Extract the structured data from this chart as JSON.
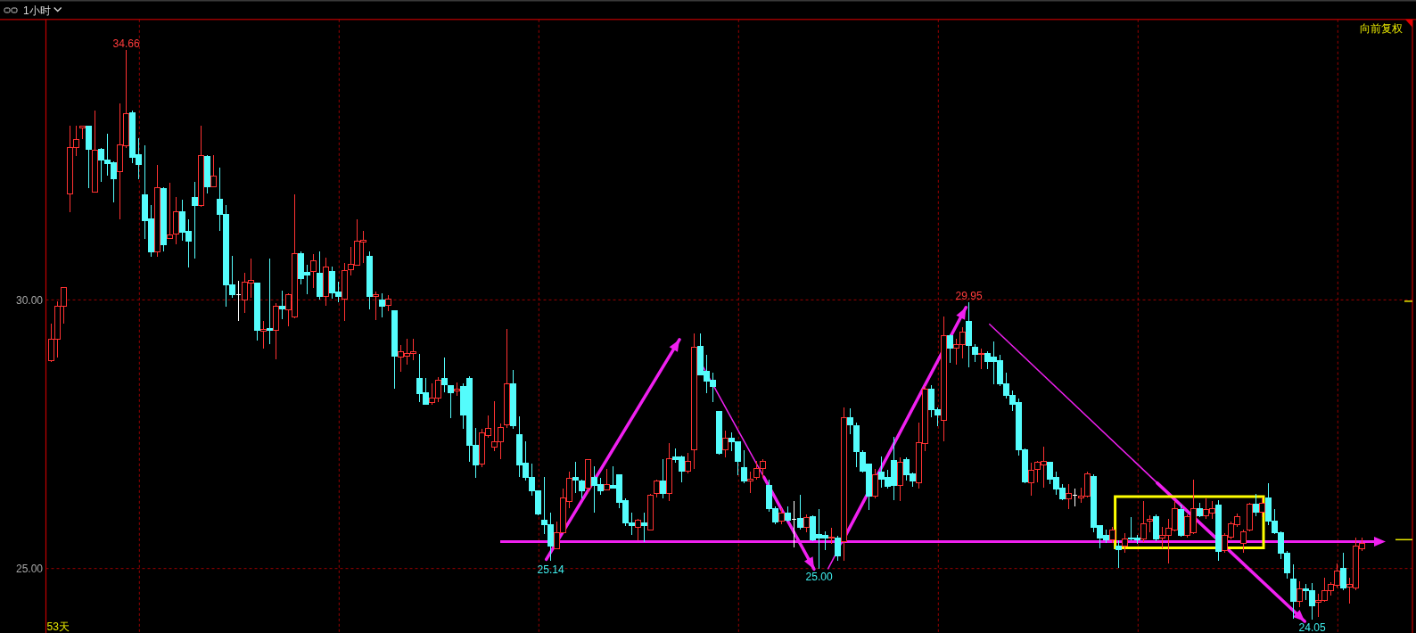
{
  "chart_data": {
    "type": "candlestick",
    "title": "1小时",
    "categories": [
      null,
      null,
      null,
      null,
      null,
      null,
      null,
      null,
      null,
      null,
      null,
      null,
      null,
      null,
      null,
      null,
      null,
      null,
      null,
      null,
      null,
      null,
      null,
      null,
      null,
      null,
      null,
      null,
      null,
      null,
      null,
      null,
      null,
      null,
      null,
      null,
      null,
      null,
      null,
      null,
      null,
      null,
      null,
      null,
      null,
      null,
      null,
      null,
      null,
      null,
      null,
      null,
      null,
      null,
      null,
      null,
      null,
      null,
      null,
      null,
      null,
      null,
      null,
      null,
      null,
      null,
      null,
      null,
      null,
      null,
      null,
      null,
      null,
      null,
      null,
      null,
      null,
      null,
      null,
      null,
      null,
      null,
      null,
      null,
      null,
      null,
      null,
      null,
      null,
      null,
      null,
      null,
      null,
      null,
      null,
      null,
      null,
      null,
      null,
      null,
      null,
      null,
      null,
      null,
      null,
      null,
      null,
      null,
      null,
      null,
      null,
      null,
      null,
      null,
      null,
      null,
      null,
      null,
      null,
      null,
      null,
      null,
      null,
      null,
      null,
      null,
      null,
      null,
      null,
      null,
      null,
      null,
      null,
      null,
      null,
      null,
      null,
      null,
      null,
      null,
      null,
      null,
      null,
      null,
      null,
      null,
      null,
      null,
      null,
      null,
      null,
      null,
      null,
      null,
      null,
      null,
      null,
      null,
      null,
      null,
      null,
      null,
      null,
      null,
      null,
      null,
      null,
      null,
      null,
      null,
      null,
      null,
      null,
      null,
      null,
      null,
      null,
      null,
      null,
      null,
      null,
      null,
      null,
      null,
      null,
      null,
      null,
      null,
      null,
      null,
      null,
      null,
      null,
      null,
      null,
      null,
      null,
      null,
      null,
      null,
      null,
      null,
      null,
      null,
      null,
      null,
      null,
      null,
      null,
      null,
      null
    ],
    "ohlc": [
      [
        28.87,
        29.56,
        28.85,
        29.26
      ],
      [
        29.27,
        29.97,
        28.92,
        29.88
      ],
      [
        29.88,
        30.23,
        29.56,
        30.23
      ],
      [
        31.97,
        33.25,
        31.63,
        32.83
      ],
      [
        32.83,
        33.25,
        32.67,
        32.99
      ],
      [
        33.2,
        33.23,
        32.99,
        33.23
      ],
      [
        33.23,
        33.25,
        32.08,
        32.8
      ],
      [
        32.0,
        33.53,
        32.0,
        32.78
      ],
      [
        32.8,
        32.83,
        32.19,
        32.6
      ],
      [
        32.6,
        33.09,
        32.32,
        32.54
      ],
      [
        32.55,
        32.57,
        31.81,
        32.25
      ],
      [
        32.39,
        33.66,
        31.5,
        32.88
      ],
      [
        32.87,
        34.66,
        32.83,
        33.47
      ],
      [
        33.49,
        33.53,
        32.54,
        32.66
      ],
      [
        32.7,
        33.01,
        32.25,
        32.52
      ],
      [
        31.96,
        32.87,
        31.13,
        31.48
      ],
      [
        31.5,
        31.76,
        30.81,
        30.9
      ],
      [
        30.9,
        32.52,
        30.81,
        32.09
      ],
      [
        32.07,
        32.09,
        30.9,
        31.02
      ],
      [
        31.14,
        32.18,
        31.14,
        31.21
      ],
      [
        31.23,
        31.91,
        31.04,
        31.64
      ],
      [
        31.64,
        31.87,
        31.1,
        31.26
      ],
      [
        31.28,
        31.5,
        30.61,
        31.1
      ],
      [
        31.91,
        32.19,
        30.77,
        31.75
      ],
      [
        31.75,
        33.25,
        31.74,
        32.69
      ],
      [
        32.67,
        32.7,
        31.98,
        32.1
      ],
      [
        32.1,
        32.7,
        32.1,
        32.3
      ],
      [
        31.88,
        32.47,
        31.28,
        31.59
      ],
      [
        31.59,
        31.77,
        29.88,
        30.28
      ],
      [
        30.28,
        30.82,
        30.04,
        30.09
      ],
      [
        30.09,
        30.35,
        29.6,
        30.09
      ],
      [
        30.0,
        30.5,
        29.75,
        30.33
      ],
      [
        30.31,
        30.77,
        30.04,
        30.36
      ],
      [
        30.31,
        30.31,
        29.24,
        29.44
      ],
      [
        29.42,
        29.6,
        29.09,
        29.45
      ],
      [
        29.47,
        30.77,
        29.17,
        29.44
      ],
      [
        29.44,
        29.94,
        28.9,
        29.88
      ],
      [
        29.88,
        30.18,
        29.64,
        29.84
      ],
      [
        29.82,
        30.13,
        29.51,
        30.09
      ],
      [
        29.68,
        31.96,
        29.66,
        30.86
      ],
      [
        30.86,
        30.91,
        30.29,
        30.4
      ],
      [
        30.51,
        30.66,
        30.11,
        30.46
      ],
      [
        30.53,
        30.86,
        30.23,
        30.72
      ],
      [
        30.5,
        30.91,
        30.0,
        30.06
      ],
      [
        30.06,
        30.79,
        29.89,
        30.61
      ],
      [
        30.53,
        30.62,
        30.02,
        30.13
      ],
      [
        30.15,
        30.33,
        29.95,
        30.07
      ],
      [
        30.02,
        30.69,
        29.6,
        30.55
      ],
      [
        30.57,
        30.99,
        30.45,
        30.66
      ],
      [
        30.64,
        31.5,
        30.63,
        31.1
      ],
      [
        31.08,
        31.28,
        30.68,
        31.11
      ],
      [
        30.81,
        30.9,
        29.82,
        30.07
      ],
      [
        30.06,
        30.15,
        29.62,
        30.09
      ],
      [
        30.0,
        30.13,
        29.67,
        29.89
      ],
      [
        29.9,
        30.09,
        29.79,
        30.02
      ],
      [
        29.8,
        29.8,
        28.34,
        28.95
      ],
      [
        28.94,
        29.16,
        28.66,
        29.04
      ],
      [
        28.95,
        29.27,
        28.8,
        29.0
      ],
      [
        29.01,
        29.27,
        28.88,
        29.04
      ],
      [
        28.54,
        29.0,
        28.09,
        28.26
      ],
      [
        28.27,
        28.54,
        28.05,
        28.05
      ],
      [
        28.09,
        28.45,
        28.05,
        28.18
      ],
      [
        28.18,
        28.56,
        28.09,
        28.51
      ],
      [
        28.54,
        28.93,
        28.28,
        28.42
      ],
      [
        28.4,
        28.4,
        27.8,
        28.28
      ],
      [
        28.31,
        28.47,
        28.21,
        28.34
      ],
      [
        28.39,
        28.45,
        27.6,
        27.85
      ],
      [
        28.53,
        28.58,
        26.99,
        27.3
      ],
      [
        27.3,
        27.61,
        26.69,
        26.93
      ],
      [
        26.94,
        27.6,
        26.88,
        27.53
      ],
      [
        27.48,
        27.85,
        27.43,
        27.61
      ],
      [
        27.26,
        28.12,
        27.19,
        27.36
      ],
      [
        27.36,
        27.7,
        27.04,
        27.63
      ],
      [
        27.67,
        29.46,
        27.61,
        28.43
      ],
      [
        28.43,
        28.69,
        27.6,
        27.65
      ],
      [
        27.5,
        27.83,
        26.7,
        26.92
      ],
      [
        26.96,
        27.37,
        26.63,
        26.69
      ],
      [
        26.7,
        26.96,
        26.35,
        26.45
      ],
      [
        26.45,
        26.45,
        25.99,
        26.01
      ],
      [
        25.9,
        26.7,
        25.64,
        25.82
      ],
      [
        25.82,
        26.04,
        25.14,
        25.42
      ],
      [
        25.37,
        25.88,
        25.37,
        25.66
      ],
      [
        25.66,
        26.48,
        25.66,
        26.32
      ],
      [
        26.25,
        26.8,
        26.12,
        26.68
      ],
      [
        26.7,
        26.98,
        26.41,
        26.64
      ],
      [
        26.63,
        26.66,
        26.3,
        26.45
      ],
      [
        26.5,
        27.03,
        26.41,
        27.03
      ],
      [
        26.7,
        26.9,
        26.04,
        26.55
      ],
      [
        26.57,
        26.69,
        26.37,
        26.45
      ],
      [
        26.47,
        26.86,
        26.45,
        26.57
      ],
      [
        26.54,
        26.9,
        26.5,
        26.5
      ],
      [
        26.74,
        26.75,
        26.13,
        26.23
      ],
      [
        26.26,
        26.3,
        25.79,
        25.85
      ],
      [
        25.85,
        26.04,
        25.62,
        25.8
      ],
      [
        25.77,
        25.93,
        25.53,
        25.9
      ],
      [
        25.85,
        26.04,
        25.5,
        25.8
      ],
      [
        25.72,
        26.39,
        25.72,
        26.37
      ],
      [
        26.39,
        26.66,
        26.32,
        26.63
      ],
      [
        26.63,
        27.03,
        26.3,
        26.39
      ],
      [
        26.39,
        27.34,
        26.26,
        27.04
      ],
      [
        27.07,
        27.23,
        26.97,
        27.03
      ],
      [
        27.07,
        27.1,
        26.61,
        26.81
      ],
      [
        26.81,
        27.16,
        26.77,
        26.99
      ],
      [
        27.21,
        29.38,
        26.85,
        29.12
      ],
      [
        29.13,
        29.38,
        28.6,
        28.61
      ],
      [
        28.67,
        28.98,
        28.27,
        28.49
      ],
      [
        28.51,
        28.64,
        28.1,
        28.38
      ],
      [
        27.92,
        27.92,
        27.12,
        27.15
      ],
      [
        27.21,
        27.56,
        27.07,
        27.42
      ],
      [
        27.42,
        27.53,
        27.18,
        27.36
      ],
      [
        27.36,
        27.37,
        26.74,
        26.99
      ],
      [
        26.88,
        27.21,
        26.59,
        26.63
      ],
      [
        26.63,
        26.81,
        26.41,
        26.66
      ],
      [
        26.69,
        27.01,
        26.66,
        26.86
      ],
      [
        26.86,
        27.03,
        26.69,
        26.99
      ],
      [
        26.54,
        26.66,
        26.06,
        26.12
      ],
      [
        26.12,
        26.15,
        25.82,
        25.86
      ],
      [
        25.88,
        26.13,
        25.82,
        26.03
      ],
      [
        26.03,
        26.15,
        25.88,
        25.9
      ],
      [
        25.92,
        26.25,
        25.39,
        25.92
      ],
      [
        25.93,
        26.37,
        25.72,
        25.77
      ],
      [
        25.77,
        26.01,
        25.68,
        25.95
      ],
      [
        25.96,
        25.99,
        25.51,
        25.53
      ],
      [
        25.64,
        26.1,
        25.0,
        25.57
      ],
      [
        25.61,
        25.69,
        25.34,
        25.57
      ],
      [
        25.56,
        25.75,
        25.46,
        25.58
      ],
      [
        25.57,
        25.61,
        25.15,
        25.24
      ],
      [
        25.5,
        27.99,
        25.15,
        27.8
      ],
      [
        27.8,
        27.98,
        27.5,
        27.67
      ],
      [
        27.66,
        27.72,
        26.88,
        27.18
      ],
      [
        27.16,
        27.21,
        26.79,
        26.82
      ],
      [
        26.94,
        26.96,
        26.09,
        26.34
      ],
      [
        26.34,
        26.85,
        26.3,
        26.74
      ],
      [
        26.8,
        27.08,
        26.5,
        26.66
      ],
      [
        26.69,
        26.83,
        26.48,
        26.53
      ],
      [
        27.01,
        27.45,
        26.28,
        26.54
      ],
      [
        26.55,
        27.07,
        26.26,
        26.98
      ],
      [
        27.03,
        27.07,
        26.64,
        26.74
      ],
      [
        26.76,
        26.79,
        26.52,
        26.63
      ],
      [
        26.59,
        27.72,
        26.48,
        27.34
      ],
      [
        27.32,
        28.39,
        27.18,
        28.34
      ],
      [
        28.34,
        28.41,
        27.81,
        27.96
      ],
      [
        27.96,
        27.99,
        27.65,
        27.85
      ],
      [
        27.76,
        29.69,
        27.36,
        29.34
      ],
      [
        29.34,
        29.36,
        28.82,
        29.11
      ],
      [
        29.11,
        29.27,
        28.8,
        29.17
      ],
      [
        29.17,
        29.49,
        28.91,
        29.4
      ],
      [
        29.6,
        29.95,
        28.74,
        29.15
      ],
      [
        29.12,
        29.18,
        28.85,
        28.98
      ],
      [
        28.98,
        29.09,
        28.71,
        29.0
      ],
      [
        29.0,
        29.05,
        28.72,
        28.85
      ],
      [
        28.93,
        29.22,
        28.43,
        28.85
      ],
      [
        28.87,
        28.98,
        28.39,
        28.44
      ],
      [
        28.44,
        28.65,
        28.16,
        28.23
      ],
      [
        28.23,
        28.31,
        27.94,
        28.05
      ],
      [
        28.09,
        28.16,
        27.1,
        27.21
      ],
      [
        27.21,
        27.23,
        26.59,
        26.61
      ],
      [
        26.59,
        26.97,
        26.35,
        26.83
      ],
      [
        26.85,
        27.01,
        26.61,
        26.98
      ],
      [
        26.92,
        27.26,
        26.5,
        26.99
      ],
      [
        26.98,
        26.99,
        26.57,
        26.66
      ],
      [
        26.69,
        26.81,
        26.37,
        26.48
      ],
      [
        26.5,
        26.57,
        26.28,
        26.3
      ],
      [
        26.3,
        26.57,
        26.1,
        26.39
      ],
      [
        26.37,
        26.48,
        26.15,
        26.37
      ],
      [
        26.32,
        26.5,
        26.23,
        26.35
      ],
      [
        26.34,
        26.8,
        26.32,
        26.77
      ],
      [
        26.72,
        26.75,
        25.68,
        25.77
      ],
      [
        25.8,
        25.8,
        25.37,
        25.57
      ],
      [
        25.62,
        25.72,
        25.48,
        25.53
      ],
      [
        25.53,
        25.77,
        25.47,
        25.72
      ],
      [
        25.42,
        25.53,
        25.01,
        25.35
      ],
      [
        25.42,
        25.66,
        25.29,
        25.55
      ],
      [
        25.57,
        25.96,
        25.53,
        25.55
      ],
      [
        25.57,
        25.62,
        25.46,
        25.53
      ],
      [
        25.55,
        26.26,
        25.5,
        25.84
      ],
      [
        25.88,
        25.99,
        25.68,
        25.92
      ],
      [
        25.96,
        26.01,
        25.51,
        25.55
      ],
      [
        25.57,
        25.77,
        25.37,
        25.62
      ],
      [
        25.62,
        25.93,
        25.09,
        25.75
      ],
      [
        25.72,
        26.26,
        25.7,
        26.12
      ],
      [
        26.09,
        26.19,
        25.59,
        25.62
      ],
      [
        25.61,
        26.01,
        25.57,
        25.96
      ],
      [
        25.67,
        26.66,
        25.64,
        26.12
      ],
      [
        26.12,
        26.23,
        25.96,
        25.99
      ],
      [
        25.99,
        26.3,
        25.93,
        26.09
      ],
      [
        26.03,
        26.26,
        25.92,
        26.12
      ],
      [
        26.18,
        26.28,
        25.15,
        25.32
      ],
      [
        25.34,
        25.66,
        25.29,
        25.62
      ],
      [
        25.59,
        25.88,
        25.54,
        25.83
      ],
      [
        25.82,
        26.02,
        25.77,
        25.97
      ],
      [
        25.47,
        25.73,
        25.29,
        25.69
      ],
      [
        25.72,
        26.22,
        25.69,
        26.2
      ],
      [
        26.2,
        26.39,
        25.97,
        26.05
      ],
      [
        26.05,
        26.32,
        25.96,
        26.22
      ],
      [
        26.32,
        26.58,
        25.81,
        25.88
      ],
      [
        25.88,
        26.11,
        25.64,
        25.67
      ],
      [
        25.67,
        25.69,
        25.17,
        25.29
      ],
      [
        25.29,
        25.32,
        24.81,
        24.92
      ],
      [
        24.81,
        25.07,
        24.07,
        24.39
      ],
      [
        24.39,
        24.77,
        24.28,
        24.62
      ],
      [
        24.62,
        24.71,
        24.41,
        24.59
      ],
      [
        24.59,
        24.73,
        24.05,
        24.3
      ],
      [
        24.38,
        24.53,
        24.1,
        24.41
      ],
      [
        24.4,
        24.83,
        24.38,
        24.59
      ],
      [
        24.59,
        24.75,
        24.49,
        24.7
      ],
      [
        24.68,
        25.09,
        24.64,
        24.96
      ],
      [
        25.0,
        25.29,
        24.59,
        24.64
      ],
      [
        24.66,
        24.83,
        24.34,
        24.71
      ],
      [
        24.64,
        25.58,
        24.59,
        25.41
      ],
      [
        25.37,
        25.58,
        25.32,
        25.47
      ]
    ],
    "colors": [
      "#ff3232",
      "#ff3232",
      "#ff3232",
      "#ff3232",
      "#ff3232",
      "#ff3232",
      "#54fcfc",
      "#ff3232",
      "#54fcfc",
      "#54fcfc",
      "#54fcfc",
      "#ff3232",
      "#ff3232",
      "#54fcfc",
      "#54fcfc",
      "#54fcfc",
      "#54fcfc",
      "#ff3232",
      "#54fcfc",
      "#ff3232",
      "#ff3232",
      "#54fcfc",
      "#54fcfc",
      "#54fcfc",
      "#ff3232",
      "#54fcfc",
      "#ff3232",
      "#54fcfc",
      "#54fcfc",
      "#54fcfc",
      "#ffffff",
      "#ff3232",
      "#ff3232",
      "#54fcfc",
      "#ff3232",
      "#54fcfc",
      "#ff3232",
      "#54fcfc",
      "#ff3232",
      "#ff3232",
      "#54fcfc",
      "#54fcfc",
      "#ff3232",
      "#54fcfc",
      "#ff3232",
      "#54fcfc",
      "#54fcfc",
      "#ff3232",
      "#ff3232",
      "#ff3232",
      "#ff3232",
      "#54fcfc",
      "#ff3232",
      "#54fcfc",
      "#ff3232",
      "#54fcfc",
      "#ff3232",
      "#ff3232",
      "#ff3232",
      "#54fcfc",
      "#54fcfc",
      "#ff3232",
      "#ff3232",
      "#54fcfc",
      "#54fcfc",
      "#ff3232",
      "#54fcfc",
      "#54fcfc",
      "#54fcfc",
      "#ff3232",
      "#ff3232",
      "#ff3232",
      "#ff3232",
      "#ff3232",
      "#54fcfc",
      "#54fcfc",
      "#54fcfc",
      "#54fcfc",
      "#54fcfc",
      "#54fcfc",
      "#54fcfc",
      "#ff3232",
      "#ff3232",
      "#ff3232",
      "#54fcfc",
      "#54fcfc",
      "#ff3232",
      "#54fcfc",
      "#54fcfc",
      "#ff3232",
      "#54fcfc",
      "#54fcfc",
      "#54fcfc",
      "#54fcfc",
      "#ff3232",
      "#54fcfc",
      "#ff3232",
      "#ff3232",
      "#54fcfc",
      "#ff3232",
      "#54fcfc",
      "#54fcfc",
      "#ff3232",
      "#ff3232",
      "#54fcfc",
      "#54fcfc",
      "#54fcfc",
      "#54fcfc",
      "#ff3232",
      "#54fcfc",
      "#54fcfc",
      "#54fcfc",
      "#ff3232",
      "#ff3232",
      "#ff3232",
      "#54fcfc",
      "#54fcfc",
      "#ff3232",
      "#54fcfc",
      "#ffffff",
      "#54fcfc",
      "#ff3232",
      "#54fcfc",
      "#54fcfc",
      "#54fcfc",
      "#ff3232",
      "#54fcfc",
      "#ff3232",
      "#54fcfc",
      "#54fcfc",
      "#54fcfc",
      "#54fcfc",
      "#ff3232",
      "#54fcfc",
      "#54fcfc",
      "#54fcfc",
      "#ff3232",
      "#54fcfc",
      "#54fcfc",
      "#ff3232",
      "#ff3232",
      "#54fcfc",
      "#54fcfc",
      "#ff3232",
      "#54fcfc",
      "#ff3232",
      "#ff3232",
      "#54fcfc",
      "#54fcfc",
      "#ff3232",
      "#54fcfc",
      "#54fcfc",
      "#54fcfc",
      "#54fcfc",
      "#54fcfc",
      "#54fcfc",
      "#54fcfc",
      "#ff3232",
      "#ff3232",
      "#ff3232",
      "#54fcfc",
      "#54fcfc",
      "#54fcfc",
      "#ff3232",
      "#ffffff",
      "#ff3232",
      "#ff3232",
      "#54fcfc",
      "#54fcfc",
      "#54fcfc",
      "#ff3232",
      "#54fcfc",
      "#ff3232",
      "#54fcfc",
      "#54fcfc",
      "#ff3232",
      "#ff3232",
      "#54fcfc",
      "#ff3232",
      "#ff3232",
      "#ff3232",
      "#54fcfc",
      "#ff3232",
      "#ff3232",
      "#54fcfc",
      "#ff3232",
      "#ff3232",
      "#54fcfc",
      "#ff3232",
      "#ff3232",
      "#ff3232",
      "#ff3232",
      "#ff3232",
      "#54fcfc",
      "#ff3232",
      "#54fcfc",
      "#54fcfc",
      "#54fcfc",
      "#54fcfc",
      "#54fcfc",
      "#ff3232",
      "#54fcfc",
      "#54fcfc",
      "#ff3232",
      "#ff3232",
      "#ff3232",
      "#ff3232",
      "#54fcfc",
      "#ff3232",
      "#ff3232",
      "#ff3232"
    ],
    "ylim": [
      23.8,
      35.22
    ],
    "yticks": [
      {
        "value": 30,
        "label": "30.00"
      },
      {
        "value": 25,
        "label": "25.00"
      }
    ],
    "grid": "y",
    "tick_labels": "y",
    "ref_lines": [
      {
        "axis": "y",
        "value": 25.5,
        "color": "#f020f0"
      }
    ],
    "annotations": [
      "向前复权",
      "53天",
      {
        "text": "34.66",
        "y": 34.66
      },
      {
        "text": "29.95",
        "y": 29.95
      },
      {
        "text": "25.14",
        "y": 25.14
      },
      {
        "text": "25.00",
        "y": 25.0
      },
      {
        "text": "24.05",
        "y": 24.05
      }
    ]
  }
}
